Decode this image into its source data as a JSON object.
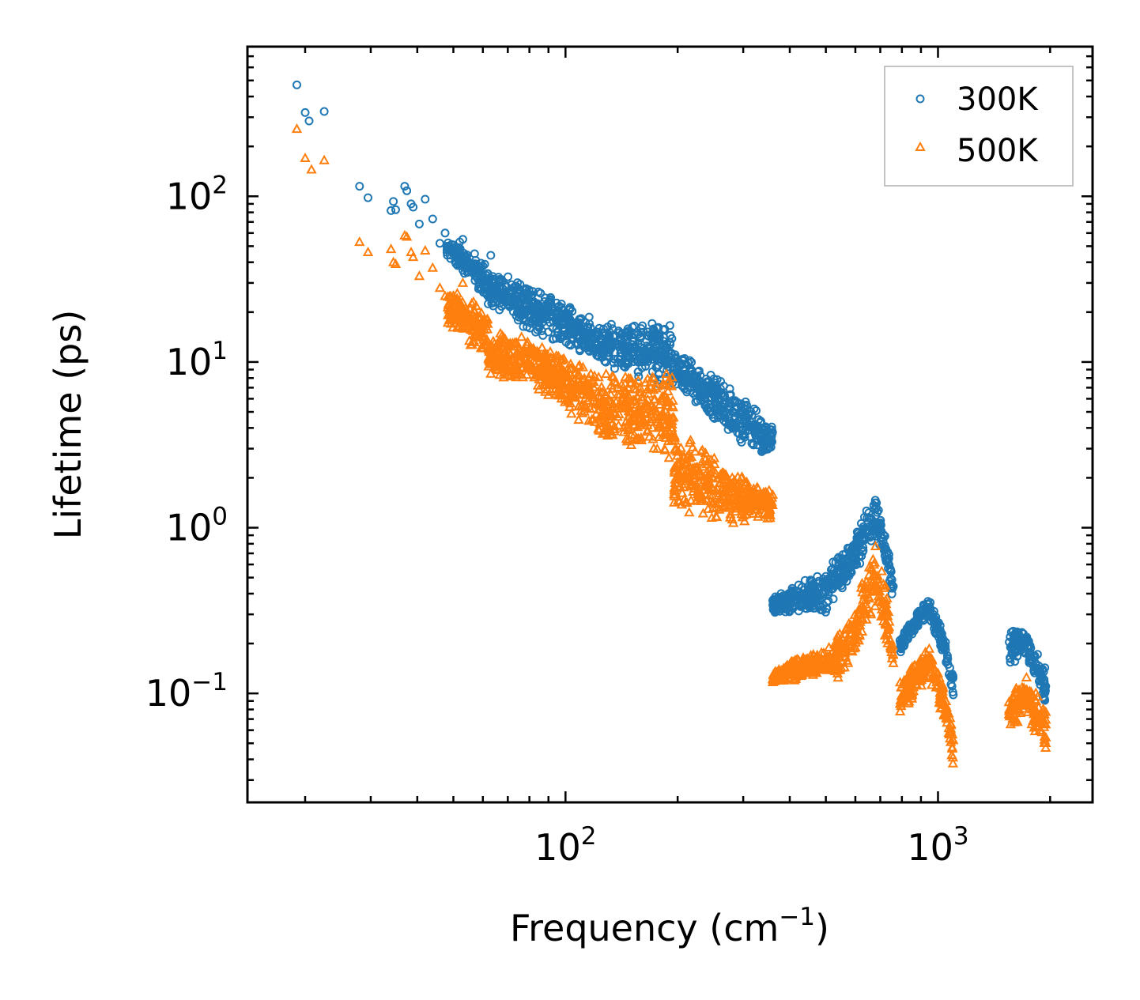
{
  "chart_data": {
    "type": "scatter",
    "xscale": "log",
    "yscale": "log",
    "xlabel": "Frequency (cm",
    "xlabel_sup": "−1",
    "xlabel_close": ")",
    "ylabel": "Lifetime (ps)",
    "xlim": [
      14,
      2600
    ],
    "ylim": [
      0.022,
      800
    ],
    "x_ticks": [
      {
        "value": 100,
        "base": "10",
        "exp": "2"
      },
      {
        "value": 1000,
        "base": "10",
        "exp": "3"
      }
    ],
    "y_ticks": [
      {
        "value": 0.1,
        "base": "10",
        "exp": "−1"
      },
      {
        "value": 1,
        "base": "10",
        "exp": "0"
      },
      {
        "value": 10,
        "base": "10",
        "exp": "1"
      },
      {
        "value": 100,
        "base": "10",
        "exp": "2"
      }
    ],
    "legend_position": "top-right",
    "series": [
      {
        "name": "300K",
        "marker": "circle",
        "color": "#1f77b4",
        "isolated_points": [
          [
            19,
            470
          ],
          [
            20,
            320
          ],
          [
            20.5,
            285
          ],
          [
            22.5,
            325
          ],
          [
            28,
            115
          ],
          [
            29.5,
            98
          ],
          [
            34,
            82
          ],
          [
            34.5,
            93
          ],
          [
            35,
            83
          ],
          [
            37,
            115
          ],
          [
            37.5,
            108
          ],
          [
            38.5,
            90
          ],
          [
            39,
            86
          ],
          [
            40.5,
            68
          ],
          [
            42,
            96
          ],
          [
            44,
            73
          ],
          [
            46,
            52
          ],
          [
            47.5,
            60
          ],
          [
            48.5,
            50
          ],
          [
            52,
            53
          ],
          [
            53,
            55
          ],
          [
            55,
            35
          ],
          [
            57,
            45
          ],
          [
            60,
            38
          ],
          [
            63,
            44
          ]
        ],
        "bands": [
          {
            "x": [
              48,
              62
            ],
            "y_low": [
              42,
              22
            ],
            "y_high": [
              58,
              38
            ]
          },
          {
            "x": [
              62,
              80
            ],
            "y_low": [
              22,
              15
            ],
            "y_high": [
              36,
              30
            ]
          },
          {
            "x": [
              80,
              125
            ],
            "y_low": [
              15,
              9.5
            ],
            "y_high": [
              30,
              17
            ]
          },
          {
            "x": [
              125,
              195
            ],
            "y_low": [
              9.5,
              6.5
            ],
            "y_high": [
              17,
              18
            ]
          },
          {
            "x": [
              195,
              290
            ],
            "y_low": [
              6.5,
              3.2
            ],
            "y_high": [
              12,
              6.5
            ]
          },
          {
            "x": [
              290,
              360
            ],
            "y_low": [
              3.2,
              2.6
            ],
            "y_high": [
              6.5,
              4.2
            ]
          },
          {
            "x": [
              360,
              500
            ],
            "y_low": [
              0.3,
              0.3
            ],
            "y_high": [
              0.4,
              0.55
            ]
          },
          {
            "x": [
              500,
              600
            ],
            "y_low": [
              0.3,
              0.5
            ],
            "y_high": [
              0.55,
              0.95
            ]
          },
          {
            "x": [
              600,
              680
            ],
            "y_low": [
              0.5,
              0.8
            ],
            "y_high": [
              0.95,
              1.6
            ]
          },
          {
            "x": [
              680,
              760
            ],
            "y_low": [
              0.8,
              0.35
            ],
            "y_high": [
              1.6,
              0.45
            ]
          },
          {
            "x": [
              790,
              940
            ],
            "y_low": [
              0.17,
              0.28
            ],
            "y_high": [
              0.22,
              0.38
            ]
          },
          {
            "x": [
              940,
              1100
            ],
            "y_low": [
              0.28,
              0.09
            ],
            "y_high": [
              0.38,
              0.14
            ]
          },
          {
            "x": [
              1550,
              1700
            ],
            "y_low": [
              0.14,
              0.17
            ],
            "y_high": [
              0.24,
              0.24
            ]
          },
          {
            "x": [
              1700,
              1950
            ],
            "y_low": [
              0.17,
              0.08
            ],
            "y_high": [
              0.24,
              0.15
            ]
          }
        ]
      },
      {
        "name": "500K",
        "marker": "triangle",
        "color": "#ff7f0e",
        "isolated_points": [
          [
            19,
            255
          ],
          [
            20,
            170
          ],
          [
            20.8,
            145
          ],
          [
            22.5,
            165
          ],
          [
            28,
            53
          ],
          [
            29.5,
            46
          ],
          [
            34,
            48
          ],
          [
            34.5,
            40
          ],
          [
            35,
            39
          ],
          [
            37,
            58
          ],
          [
            37.5,
            57
          ],
          [
            38.5,
            46
          ],
          [
            39,
            43
          ],
          [
            40.5,
            33
          ],
          [
            42,
            47
          ],
          [
            44,
            37
          ],
          [
            46,
            28
          ],
          [
            47.5,
            25
          ],
          [
            48.5,
            22
          ],
          [
            52,
            19
          ],
          [
            53,
            30
          ],
          [
            55,
            18
          ],
          [
            57,
            20
          ],
          [
            60,
            14
          ],
          [
            63,
            8.5
          ]
        ],
        "bands": [
          {
            "x": [
              48,
              62
            ],
            "y_low": [
              16,
              10
            ],
            "y_high": [
              30,
              20
            ]
          },
          {
            "x": [
              62,
              80
            ],
            "y_low": [
              8,
              7
            ],
            "y_high": [
              16,
              14
            ]
          },
          {
            "x": [
              80,
              125
            ],
            "y_low": [
              7,
              3.2
            ],
            "y_high": [
              14,
              8.5
            ]
          },
          {
            "x": [
              125,
              195
            ],
            "y_low": [
              3.2,
              2.5
            ],
            "y_high": [
              8.5,
              9.5
            ]
          },
          {
            "x": [
              195,
              290
            ],
            "y_low": [
              1.2,
              1.0
            ],
            "y_high": [
              4,
              2.2
            ]
          },
          {
            "x": [
              290,
              360
            ],
            "y_low": [
              1.0,
              1.1
            ],
            "y_high": [
              2.2,
              1.7
            ]
          },
          {
            "x": [
              360,
              520
            ],
            "y_low": [
              0.11,
              0.13
            ],
            "y_high": [
              0.14,
              0.2
            ]
          },
          {
            "x": [
              520,
              600
            ],
            "y_low": [
              0.11,
              0.15
            ],
            "y_high": [
              0.22,
              0.32
            ]
          },
          {
            "x": [
              600,
              680
            ],
            "y_low": [
              0.15,
              0.3
            ],
            "y_high": [
              0.32,
              0.85
            ]
          },
          {
            "x": [
              680,
              760
            ],
            "y_low": [
              0.3,
              0.13
            ],
            "y_high": [
              0.85,
              0.18
            ]
          },
          {
            "x": [
              790,
              940
            ],
            "y_low": [
              0.07,
              0.12
            ],
            "y_high": [
              0.12,
              0.2
            ]
          },
          {
            "x": [
              940,
              1100
            ],
            "y_low": [
              0.12,
              0.035
            ],
            "y_high": [
              0.2,
              0.06
            ]
          },
          {
            "x": [
              1550,
              1700
            ],
            "y_low": [
              0.06,
              0.07
            ],
            "y_high": [
              0.1,
              0.14
            ]
          },
          {
            "x": [
              1700,
              1950
            ],
            "y_low": [
              0.07,
              0.045
            ],
            "y_high": [
              0.14,
              0.08
            ]
          }
        ]
      }
    ]
  }
}
